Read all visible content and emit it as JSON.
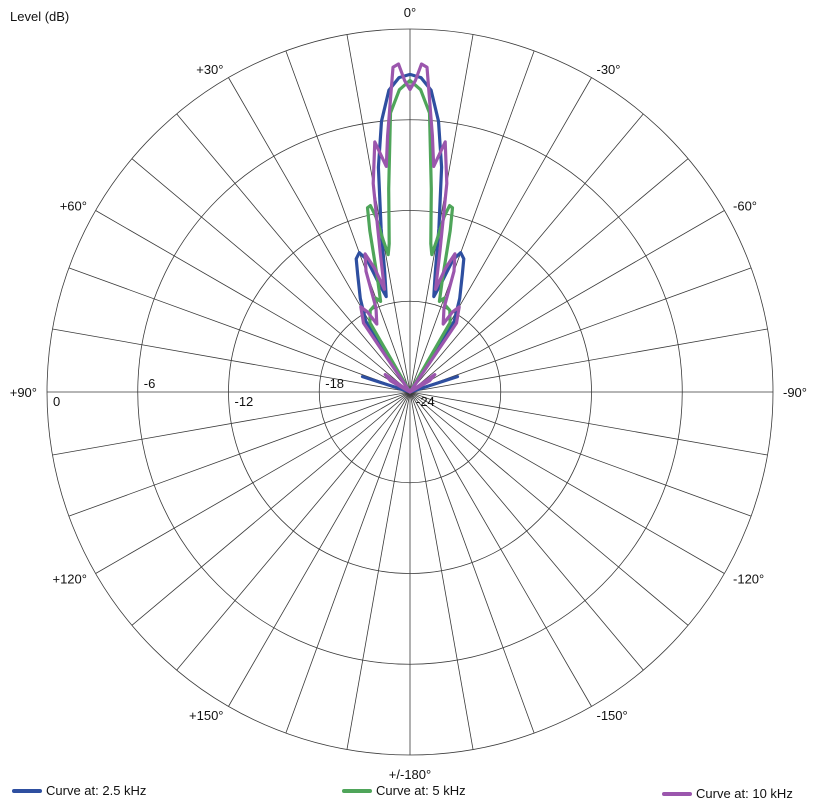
{
  "chart_data": {
    "type": "polar",
    "ylabel": "Level (dB)",
    "radial_range": [
      -24,
      0
    ],
    "radial_ticks": [
      0,
      -6,
      -12,
      -18,
      -24
    ],
    "radial_tick_labels": [
      "0",
      "-6",
      "-12",
      "-18",
      "-24"
    ],
    "angle_step_deg": 10,
    "angle_labels": [
      {
        "angle": 0,
        "text": "0°"
      },
      {
        "angle": 30,
        "text": "+30°"
      },
      {
        "angle": -30,
        "text": "-30°"
      },
      {
        "angle": 60,
        "text": "+60°"
      },
      {
        "angle": -60,
        "text": "-60°"
      },
      {
        "angle": 90,
        "text": "+90°"
      },
      {
        "angle": -90,
        "text": "-90°"
      },
      {
        "angle": 120,
        "text": "+120°"
      },
      {
        "angle": -120,
        "text": "-120°"
      },
      {
        "angle": 150,
        "text": "+150°"
      },
      {
        "angle": -150,
        "text": "-150°"
      },
      {
        "angle": 180,
        "text": "+/-180°"
      }
    ],
    "grid": true,
    "legend_position": "bottom",
    "series": [
      {
        "name": "Curve at: 2.5 kHz",
        "color": "#2e4fa0",
        "points": [
          [
            -90,
            -24
          ],
          [
            -80,
            -24
          ],
          [
            -72,
            -20.7
          ],
          [
            -60,
            -24
          ],
          [
            -50,
            -24
          ],
          [
            -40,
            -24
          ],
          [
            -32,
            -18.5
          ],
          [
            -28,
            -17
          ],
          [
            -24,
            -15.5
          ],
          [
            -22,
            -14.5
          ],
          [
            -20,
            -14.2
          ],
          [
            -18,
            -14.8
          ],
          [
            -16,
            -16.5
          ],
          [
            -14,
            -17.5
          ],
          [
            -12,
            -16
          ],
          [
            -10,
            -13
          ],
          [
            -8,
            -9
          ],
          [
            -6,
            -6
          ],
          [
            -4,
            -4
          ],
          [
            -2,
            -3.2
          ],
          [
            0,
            -3
          ],
          [
            2,
            -3.2
          ],
          [
            4,
            -4
          ],
          [
            6,
            -6
          ],
          [
            8,
            -9
          ],
          [
            10,
            -13
          ],
          [
            12,
            -16
          ],
          [
            14,
            -17.5
          ],
          [
            16,
            -16.5
          ],
          [
            18,
            -14.8
          ],
          [
            20,
            -14.2
          ],
          [
            22,
            -14.5
          ],
          [
            24,
            -15.5
          ],
          [
            28,
            -17
          ],
          [
            32,
            -18.5
          ],
          [
            40,
            -24
          ],
          [
            50,
            -24
          ],
          [
            60,
            -24
          ],
          [
            72,
            -20.7
          ],
          [
            80,
            -24
          ],
          [
            90,
            -24
          ]
        ]
      },
      {
        "name": "Curve at: 5 kHz",
        "color": "#4fa55a",
        "points": [
          [
            -90,
            -24
          ],
          [
            -60,
            -24
          ],
          [
            -40,
            -24
          ],
          [
            -30,
            -18.7
          ],
          [
            -26,
            -18
          ],
          [
            -22,
            -17.8
          ],
          [
            -20,
            -17.4
          ],
          [
            -18,
            -17.7
          ],
          [
            -16,
            -16.2
          ],
          [
            -14,
            -13
          ],
          [
            -13,
            -11.5
          ],
          [
            -12,
            -11.4
          ],
          [
            -11,
            -12.2
          ],
          [
            -10,
            -13.8
          ],
          [
            -9,
            -14.8
          ],
          [
            -8,
            -14.1
          ],
          [
            -6,
            -10.5
          ],
          [
            -4,
            -5.5
          ],
          [
            -2,
            -4
          ],
          [
            0,
            -3.4
          ],
          [
            2,
            -4
          ],
          [
            4,
            -5.5
          ],
          [
            6,
            -10.5
          ],
          [
            8,
            -14.1
          ],
          [
            9,
            -14.8
          ],
          [
            10,
            -13.8
          ],
          [
            11,
            -12.2
          ],
          [
            12,
            -11.4
          ],
          [
            13,
            -11.5
          ],
          [
            14,
            -13
          ],
          [
            16,
            -16.2
          ],
          [
            18,
            -17.7
          ],
          [
            20,
            -17.4
          ],
          [
            22,
            -17.8
          ],
          [
            26,
            -18
          ],
          [
            30,
            -18.7
          ],
          [
            40,
            -24
          ],
          [
            60,
            -24
          ],
          [
            90,
            -24
          ]
        ]
      },
      {
        "name": "Curve at: 10 kHz",
        "color": "#9b56ad",
        "points": [
          [
            -90,
            -24
          ],
          [
            -70,
            -24
          ],
          [
            -60,
            -22.5
          ],
          [
            -55,
            -22
          ],
          [
            -50,
            -24
          ],
          [
            -40,
            -24
          ],
          [
            -34,
            -18.5
          ],
          [
            -30,
            -17.5
          ],
          [
            -28,
            -18
          ],
          [
            -26,
            -19
          ],
          [
            -22,
            -18
          ],
          [
            -20,
            -15.5
          ],
          [
            -18,
            -14.4
          ],
          [
            -16,
            -15.5
          ],
          [
            -14,
            -17
          ],
          [
            -12,
            -14.5
          ],
          [
            -10,
            -10
          ],
          [
            -8,
            -7.3
          ],
          [
            -6,
            -9
          ],
          [
            -5,
            -7
          ],
          [
            -4,
            -5
          ],
          [
            -3,
            -2.5
          ],
          [
            -2,
            -2.3
          ],
          [
            -1,
            -3.4
          ],
          [
            0,
            -4
          ],
          [
            1,
            -3.4
          ],
          [
            2,
            -2.3
          ],
          [
            3,
            -2.5
          ],
          [
            4,
            -5
          ],
          [
            5,
            -7
          ],
          [
            6,
            -9
          ],
          [
            8,
            -7.3
          ],
          [
            10,
            -10
          ],
          [
            12,
            -14.5
          ],
          [
            14,
            -17
          ],
          [
            16,
            -15.5
          ],
          [
            18,
            -14.4
          ],
          [
            20,
            -15.5
          ],
          [
            22,
            -18
          ],
          [
            26,
            -19
          ],
          [
            28,
            -18
          ],
          [
            30,
            -17.5
          ],
          [
            34,
            -18.5
          ],
          [
            40,
            -24
          ],
          [
            50,
            -24
          ],
          [
            55,
            -22
          ],
          [
            60,
            -22.5
          ],
          [
            70,
            -24
          ],
          [
            90,
            -24
          ]
        ]
      }
    ]
  }
}
